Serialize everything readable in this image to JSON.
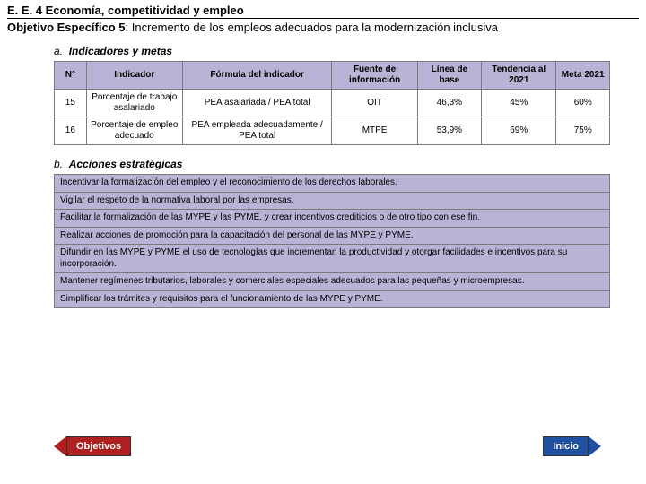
{
  "header": {
    "line1": "E. E. 4 Economía, competitividad y empleo",
    "line2_bold": "Objetivo Específico 5",
    "line2_rest": ": Incremento de los empleos adecuados para la modernización inclusiva"
  },
  "sectionA": {
    "letter": "a.",
    "title": "Indicadores y metas"
  },
  "indicators": {
    "headers": [
      "N°",
      "Indicador",
      "Fórmula del indicador",
      "Fuente de información",
      "Línea de base",
      "Tendencia al 2021",
      "Meta 2021"
    ],
    "rows": [
      [
        "15",
        "Porcentaje de trabajo asalariado",
        "PEA asalariada / PEA total",
        "OIT",
        "46,3%",
        "45%",
        "60%"
      ],
      [
        "16",
        "Porcentaje de empleo adecuado",
        "PEA empleada adecuadamente / PEA total",
        "MTPE",
        "53,9%",
        "69%",
        "75%"
      ]
    ]
  },
  "sectionB": {
    "letter": "b.",
    "title": "Acciones estratégicas"
  },
  "actions": [
    "Incentivar la formalización del empleo y el reconocimiento de los derechos laborales.",
    "Vigilar el respeto de la normativa laboral por las empresas.",
    "Facilitar la formalización de las MYPE y las PYME, y crear incentivos crediticios o de otro tipo con ese fin.",
    "Realizar acciones de promoción para la capacitación del personal de las MYPE y PYME.",
    "Difundir en las MYPE y PYME el uso de tecnologías que incrementan la productividad y otorgar facilidades e incentivos para su incorporación.",
    "Mantener regímenes tributarios, laborales y comerciales especiales adecuados para las pequeñas y microempresas.",
    "Simplificar los trámites y requisitos para el funcionamiento de las MYPE y PYME."
  ],
  "nav": {
    "left": "Objetivos",
    "right": "Inicio"
  },
  "colors": {
    "table_header_bg": "#b8b4d6",
    "table_border": "#7a7a7a",
    "btn_left_bg": "#b02020",
    "btn_right_bg": "#2050a0"
  }
}
